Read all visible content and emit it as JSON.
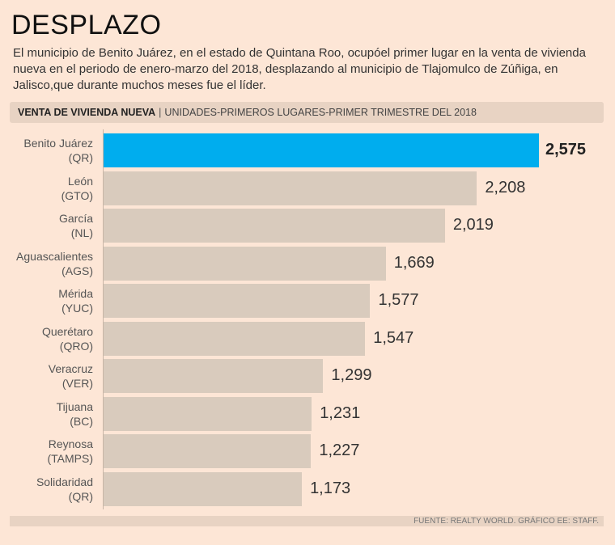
{
  "header": {
    "title": "DESPLAZO",
    "description": "El municipio de Benito Juárez, en el estado de Quintana Roo, ocupóel primer lugar en la venta de vivienda nueva en el periodo de enero-marzo del 2018, desplazando al municipio de Tlajomulco de Zúñiga, en Jalisco,que durante muchos meses fue el líder."
  },
  "chart_data": {
    "type": "bar",
    "orientation": "horizontal",
    "title": "VENTA DE VIVIENDA NUEVA",
    "subtitle": "UNIDADES-PRIMEROS LUGARES-PRIMER TRIMESTRE DEL 2018",
    "categories": [
      {
        "name": "Benito Juárez",
        "state": "(QR)"
      },
      {
        "name": "León",
        "state": "(GTO)"
      },
      {
        "name": "García",
        "state": "(NL)"
      },
      {
        "name": "Aguascalientes",
        "state": "(AGS)"
      },
      {
        "name": "Mérida",
        "state": "(YUC)"
      },
      {
        "name": "Querétaro",
        "state": "(QRO)"
      },
      {
        "name": "Veracruz",
        "state": "(VER)"
      },
      {
        "name": "Tijuana",
        "state": "(BC)"
      },
      {
        "name": "Reynosa",
        "state": "(TAMPS)"
      },
      {
        "name": "Solidaridad",
        "state": "(QR)"
      }
    ],
    "values": [
      2575,
      2208,
      2019,
      1669,
      1577,
      1547,
      1299,
      1231,
      1227,
      1173
    ],
    "value_labels": [
      "2,575",
      "2,208",
      "2,019",
      "1,669",
      "1,577",
      "1,547",
      "1,299",
      "1,231",
      "1,227",
      "1,173"
    ],
    "highlight_index": 0,
    "colors": {
      "highlight": "#00adee",
      "default": "#d9cbbd"
    },
    "xlim": [
      0,
      2575
    ],
    "grid": false,
    "legend": "none"
  },
  "footer": {
    "source": "FUENTE: REALTY WORLD.  GRÁFICO EE: STAFF."
  }
}
